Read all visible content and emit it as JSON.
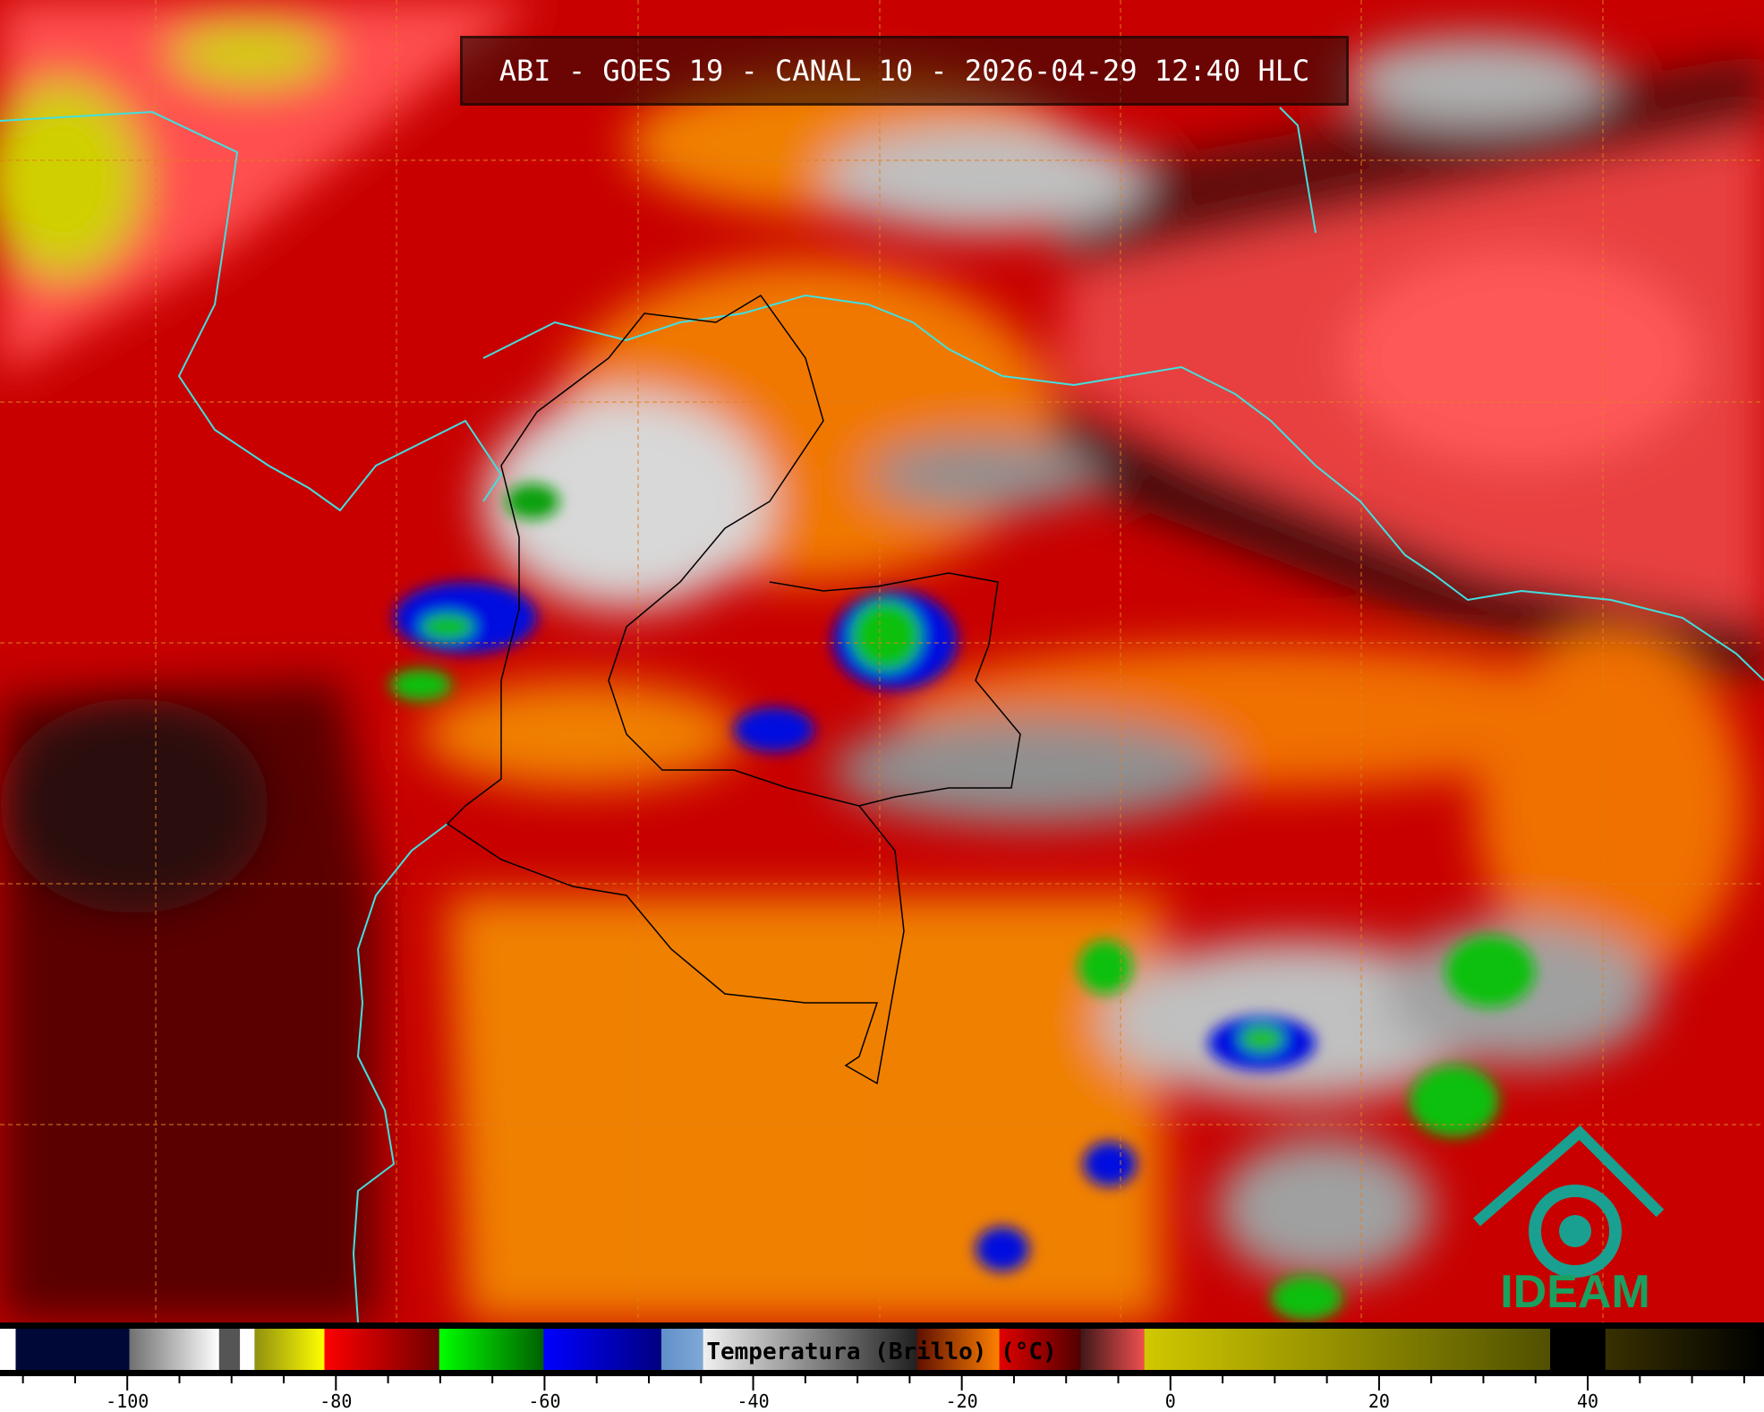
{
  "title": "ABI - GOES 19 - CANAL 10 - 2026-04-29 12:40 HLC",
  "logo_text": "IDEAM",
  "colorbar": {
    "label": "Temperatura (Brillo) (°C)",
    "range": [
      -112.2,
      56.9
    ],
    "ticks": [
      -100,
      -80,
      -60,
      -40,
      -20,
      0,
      20,
      40
    ],
    "tick_labels": [
      "-100",
      "-80",
      "-60",
      "-40",
      "-20",
      "0",
      "20",
      "40"
    ],
    "minor_tick_step": 5,
    "segments": [
      {
        "from": -112.2,
        "to": -110.7,
        "colors": [
          "#ffffff",
          "#ffffff"
        ]
      },
      {
        "from": -110.7,
        "to": -99.8,
        "colors": [
          "#000838",
          "#000838"
        ]
      },
      {
        "from": -99.8,
        "to": -91.2,
        "colors": [
          "#707070",
          "#ffffff"
        ]
      },
      {
        "from": -91.2,
        "to": -89.2,
        "colors": [
          "#555555",
          "#555555"
        ]
      },
      {
        "from": -89.2,
        "to": -87.8,
        "colors": [
          "#ffffff",
          "#ffffff"
        ]
      },
      {
        "from": -87.8,
        "to": -81.1,
        "colors": [
          "#909010",
          "#ffff00"
        ]
      },
      {
        "from": -81.1,
        "to": -70.1,
        "colors": [
          "#ff0000",
          "#700000"
        ]
      },
      {
        "from": -70.1,
        "to": -60.1,
        "colors": [
          "#00ff00",
          "#006000"
        ]
      },
      {
        "from": -60.1,
        "to": -48.8,
        "colors": [
          "#0000ff",
          "#000080"
        ]
      },
      {
        "from": -48.8,
        "to": -44.8,
        "colors": [
          "#6090c8",
          "#80a8d8"
        ]
      },
      {
        "from": -44.8,
        "to": -24.3,
        "colors": [
          "#f0f0f0",
          "#202020"
        ]
      },
      {
        "from": -24.3,
        "to": -16.4,
        "colors": [
          "#601000",
          "#ff8000"
        ]
      },
      {
        "from": -16.4,
        "to": -8.6,
        "colors": [
          "#e00000",
          "#500000"
        ]
      },
      {
        "from": -8.6,
        "to": -2.5,
        "colors": [
          "#401818",
          "#f05050"
        ]
      },
      {
        "from": -2.5,
        "to": 36.4,
        "colors": [
          "#d0c800",
          "#505000"
        ]
      },
      {
        "from": 36.4,
        "to": 41.7,
        "colors": [
          "#000000",
          "#000000"
        ]
      },
      {
        "from": 41.7,
        "to": 56.9,
        "colors": [
          "#383000",
          "#000000"
        ]
      }
    ]
  },
  "map_colors": {
    "background": "#c80000",
    "dark": "#4a0000",
    "pink": "#f04848",
    "orange": "#f08000",
    "coastline": "#40e0e0",
    "grid": "#e08020"
  }
}
